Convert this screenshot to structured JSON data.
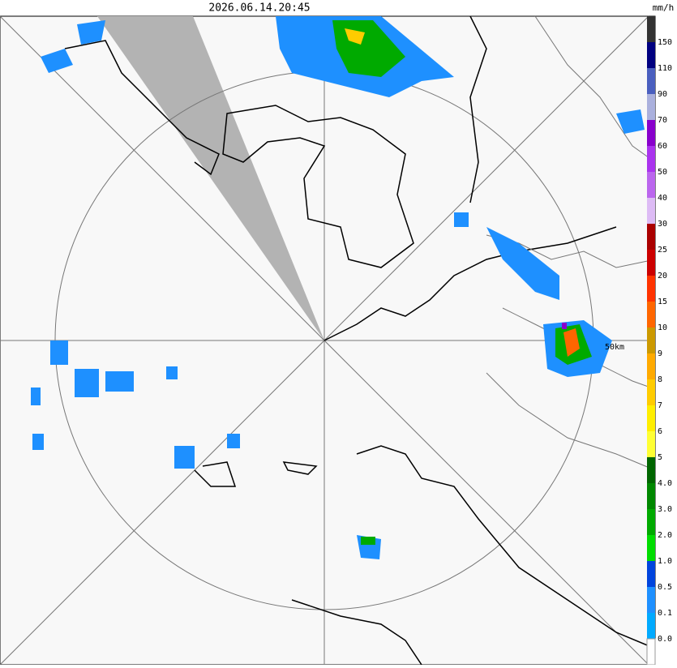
{
  "header": {
    "timestamp": "2026.06.14.20:45"
  },
  "map": {
    "range_label": "50km"
  },
  "legend": {
    "unit": "mm/h",
    "labels": [
      "150",
      "110",
      "90",
      "70",
      "60",
      "50",
      "40",
      "30",
      "25",
      "20",
      "15",
      "10",
      "9",
      "8",
      "7",
      "6",
      "5",
      "4.0",
      "3.0",
      "2.0",
      "1.0",
      "0.5",
      "0.1",
      "0.0"
    ],
    "colors": [
      "#333333",
      "#000080",
      "#4a5fbf",
      "#aab0dd",
      "#8800cc",
      "#aa33ee",
      "#bb66ee",
      "#ddbbf5",
      "#aa0000",
      "#cc0000",
      "#ff3300",
      "#ff6600",
      "#cc9900",
      "#ffaa00",
      "#ffcc00",
      "#ffee00",
      "#ffff33",
      "#006600",
      "#008800",
      "#00aa00",
      "#00dd00",
      "#0044dd",
      "#1e90ff",
      "#00aaff",
      "#ffffff"
    ]
  }
}
